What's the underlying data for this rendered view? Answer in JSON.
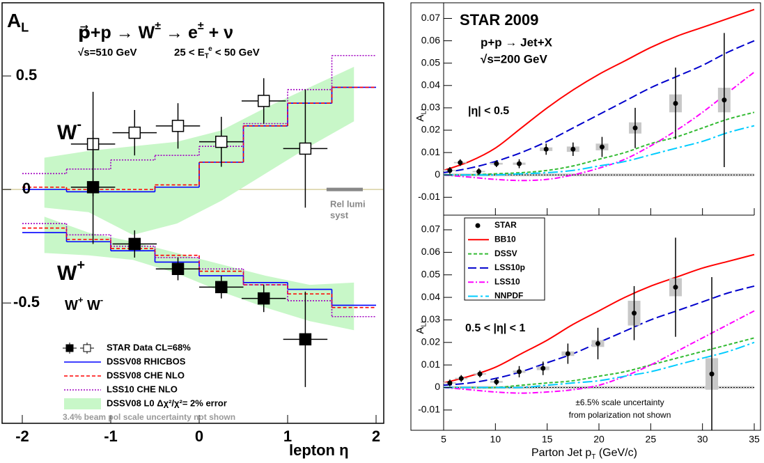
{
  "chart_data": [
    {
      "type": "step",
      "ylabel": [
        "A",
        "L"
      ],
      "title": [
        "p⃗+p  → W",
        "±",
        "  → e",
        "±",
        " + ν"
      ],
      "subtitle": "√s=510 GeV",
      "cut": [
        "25 < E",
        "T",
        "e",
        " < 50 GeV"
      ],
      "xlabel": "lepton   η",
      "xlim": [
        -2,
        2
      ],
      "xticks": [
        -2,
        -1,
        0,
        1,
        2
      ],
      "ylim": [
        -1.03,
        0.81
      ],
      "yticks": [
        -0.5,
        0,
        0.5
      ],
      "annotations": {
        "w_minus": [
          "W",
          "-"
        ],
        "w_plus": [
          "W",
          "+"
        ],
        "legend_header": [
          "W",
          "+",
          " W",
          "-"
        ],
        "rel_lumi": [
          "Rel lumi",
          "syst"
        ],
        "note": "3.4% beam pol scale uncertainty not shown"
      },
      "band": {
        "name": "DSSV08 L0  Δχ²/χ²= 2% error",
        "color": "#c8f7c8",
        "x": [
          -1.75,
          -1.25,
          -0.75,
          -0.25,
          0.25,
          0.75,
          1.25,
          1.75
        ],
        "w_minus_high": [
          0.14,
          0.17,
          0.19,
          0.21,
          0.26,
          0.36,
          0.45,
          0.54
        ],
        "w_minus_low": [
          -0.08,
          -0.1,
          -0.2,
          -0.15,
          -0.05,
          0.07,
          0.19,
          0.3
        ],
        "w_plus_high": [
          -0.12,
          -0.19,
          -0.23,
          -0.28,
          -0.33,
          -0.38,
          -0.42,
          -0.41
        ],
        "w_plus_low": [
          -0.28,
          -0.29,
          -0.31,
          -0.37,
          -0.45,
          -0.52,
          -0.58,
          -0.62
        ]
      },
      "bin_edges": [
        -2,
        -1.5,
        -1,
        -0.5,
        0,
        0.5,
        1,
        1.5,
        2
      ],
      "curves": [
        {
          "name": "DSSV08  RHICBOS",
          "color": "#0000ff",
          "style": "solid",
          "w_minus": [
            0.0,
            -0.01,
            -0.01,
            0.01,
            0.12,
            0.28,
            0.38,
            0.45
          ],
          "w_plus": [
            -0.19,
            -0.23,
            -0.27,
            -0.32,
            -0.38,
            -0.41,
            -0.44,
            -0.51
          ]
        },
        {
          "name": "DSSV08  CHE NLO",
          "color": "#ff0000",
          "style": "dashed",
          "w_minus": [
            0.01,
            0.0,
            0.0,
            0.02,
            0.12,
            0.28,
            0.38,
            0.45
          ],
          "w_plus": [
            -0.17,
            -0.22,
            -0.26,
            -0.29,
            -0.36,
            -0.42,
            -0.46,
            -0.52
          ]
        },
        {
          "name": "LSS10 CHE NLO",
          "color": "#a000c0",
          "style": "dotted",
          "w_minus": [
            0.07,
            0.09,
            0.13,
            0.15,
            0.19,
            0.29,
            0.44,
            0.59
          ],
          "w_plus": [
            -0.15,
            -0.2,
            -0.25,
            -0.3,
            -0.35,
            -0.42,
            -0.49,
            -0.56
          ]
        }
      ],
      "data": {
        "name": "STAR Data CL=68%",
        "x": [
          -1.2,
          -0.73,
          -0.24,
          0.25,
          0.73,
          1.2
        ],
        "x_err": [
          0.25,
          0.25,
          0.25,
          0.25,
          0.25,
          0.25
        ],
        "w_minus": [
          0.2,
          0.25,
          0.28,
          0.21,
          0.39,
          0.18
        ],
        "w_minus_err": [
          0.23,
          0.1,
          0.1,
          0.11,
          0.1,
          0.26
        ],
        "w_plus": [
          0.01,
          -0.24,
          -0.35,
          -0.43,
          -0.48,
          -0.66
        ],
        "w_plus_err": [
          0.25,
          0.06,
          0.05,
          0.05,
          0.06,
          0.21
        ]
      }
    },
    {
      "type": "line",
      "title": "STAR 2009",
      "subtitle": "p+p → Jet+X",
      "energy": "√s=200 GeV",
      "region": "|η| < 0.5",
      "ylabel": [
        "A",
        "LL"
      ],
      "xlim": [
        5,
        35
      ],
      "ylim": [
        -0.018,
        0.077
      ],
      "yticks": [
        -0.01,
        0,
        0.01,
        0.02,
        0.03,
        0.04,
        0.05,
        0.06,
        0.07
      ],
      "x": [
        5,
        7.5,
        10,
        12.5,
        15,
        17.5,
        20,
        22.5,
        25,
        27.5,
        30,
        32.5,
        35
      ],
      "series": [
        {
          "color": "#ff0000",
          "style": "solid",
          "values": [
            0.002,
            0.006,
            0.012,
            0.021,
            0.03,
            0.038,
            0.045,
            0.051,
            0.057,
            0.062,
            0.066,
            0.07,
            0.074
          ]
        },
        {
          "color": "#33bb33",
          "style": "dashed",
          "values": [
            0,
            0,
            0.0005,
            0.001,
            0.002,
            0.004,
            0.007,
            0.01,
            0.014,
            0.017,
            0.021,
            0.025,
            0.028
          ]
        },
        {
          "color": "#0000cc",
          "style": "longdash",
          "values": [
            0.001,
            0.003,
            0.006,
            0.01,
            0.015,
            0.021,
            0.027,
            0.033,
            0.039,
            0.044,
            0.049,
            0.055,
            0.06
          ]
        },
        {
          "color": "#ff00ff",
          "style": "dashdot",
          "values": [
            0,
            -0.001,
            -0.002,
            -0.0025,
            -0.002,
            0,
            0.003,
            0.007,
            0.013,
            0.02,
            0.028,
            0.037,
            0.046
          ]
        },
        {
          "color": "#00ccff",
          "style": "longdashdot",
          "values": [
            0,
            0,
            0,
            0.0005,
            0.001,
            0.002,
            0.004,
            0.006,
            0.009,
            0.012,
            0.015,
            0.019,
            0.022
          ]
        }
      ],
      "data": {
        "x": [
          5.6,
          6.6,
          8.4,
          10.1,
          12.3,
          14.9,
          17.5,
          20.3,
          23.5,
          27.4,
          32.1
        ],
        "values": [
          0.002,
          0.0055,
          0.0015,
          0.005,
          0.005,
          0.0115,
          0.0115,
          0.0125,
          0.021,
          0.032,
          0.0335
        ],
        "errors": [
          0.0015,
          0.0015,
          0.0015,
          0.0015,
          0.002,
          0.0025,
          0.003,
          0.0045,
          0.009,
          0.016,
          0.03
        ],
        "syst": [
          0.0003,
          0.0003,
          0.0003,
          0.0004,
          0.0005,
          0.0008,
          0.0012,
          0.0015,
          0.0025,
          0.004,
          0.0055
        ]
      }
    },
    {
      "type": "line",
      "region": "0.5 < |η| < 1",
      "ylabel": [
        "A",
        "LL"
      ],
      "xlabel": [
        "Parton Jet p",
        "T",
        " (GeV/c)"
      ],
      "note": [
        "±6.5% scale uncertainty",
        "from polarization not shown"
      ],
      "xlim": [
        5,
        35
      ],
      "xticks": [
        5,
        10,
        15,
        20,
        25,
        30,
        35
      ],
      "ylim": [
        -0.019,
        0.0765
      ],
      "yticks": [
        -0.01,
        0,
        0.01,
        0.02,
        0.03,
        0.04,
        0.05,
        0.06,
        0.07
      ],
      "x": [
        5,
        7.5,
        10,
        12.5,
        15,
        17.5,
        20,
        22.5,
        25,
        27.5,
        30,
        32.5,
        35
      ],
      "series": [
        {
          "name": "BB10",
          "color": "#ff0000",
          "style": "solid",
          "values": [
            0.002,
            0.005,
            0.009,
            0.015,
            0.021,
            0.028,
            0.034,
            0.04,
            0.045,
            0.049,
            0.053,
            0.056,
            0.059
          ]
        },
        {
          "name": "DSSV",
          "color": "#33bb33",
          "style": "dashed",
          "values": [
            0,
            0,
            0,
            0.001,
            0.002,
            0.003,
            0.005,
            0.007,
            0.01,
            0.013,
            0.016,
            0.019,
            0.022
          ]
        },
        {
          "name": "LSS10p",
          "color": "#0000cc",
          "style": "longdash",
          "values": [
            0.001,
            0.002,
            0.004,
            0.007,
            0.011,
            0.015,
            0.02,
            0.025,
            0.03,
            0.034,
            0.038,
            0.042,
            0.045
          ]
        },
        {
          "name": "LSS10",
          "color": "#ff00ff",
          "style": "dashdot",
          "values": [
            0,
            -0.001,
            -0.002,
            -0.0025,
            -0.002,
            -0.001,
            0.001,
            0.005,
            0.01,
            0.016,
            0.022,
            0.028,
            0.034
          ]
        },
        {
          "name": "NNPDF",
          "color": "#00ccff",
          "style": "longdashdot",
          "values": [
            0,
            0,
            0,
            0,
            0.001,
            0.002,
            0.003,
            0.005,
            0.007,
            0.01,
            0.013,
            0.016,
            0.02
          ]
        }
      ],
      "data": {
        "name": "STAR",
        "x": [
          5.6,
          6.7,
          8.5,
          10.1,
          12.3,
          14.6,
          17.0,
          19.9,
          23.4,
          27.4,
          30.9
        ],
        "values": [
          0.002,
          0.004,
          0.006,
          0.0025,
          0.007,
          0.0085,
          0.015,
          0.0195,
          0.033,
          0.0445,
          0.006
        ],
        "errors": [
          0.0015,
          0.0015,
          0.0015,
          0.0015,
          0.0025,
          0.003,
          0.0045,
          0.007,
          0.012,
          0.022,
          0.043
        ],
        "syst": [
          0.0003,
          0.0003,
          0.0003,
          0.0004,
          0.0005,
          0.0008,
          0.001,
          0.0015,
          0.0055,
          0.004,
          0.007
        ]
      }
    }
  ]
}
